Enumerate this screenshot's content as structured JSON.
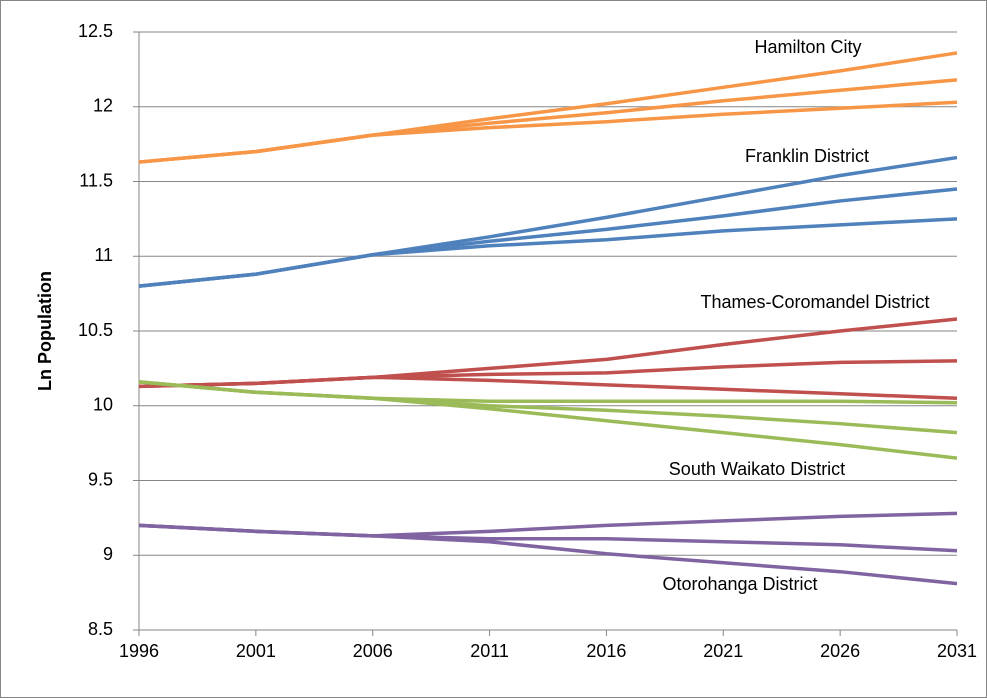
{
  "chart_data": {
    "type": "line",
    "y_label": "Ln Population",
    "x": [
      1996,
      2001,
      2006,
      2011,
      2016,
      2021,
      2026,
      2031
    ],
    "xlim": [
      1996,
      2031
    ],
    "xticks": [
      1996,
      2001,
      2006,
      2011,
      2016,
      2021,
      2026,
      2031
    ],
    "ylim": [
      8.5,
      12.5
    ],
    "yticks": [
      12.5,
      12,
      11.5,
      11,
      10.5,
      10,
      9.5,
      9,
      8.5
    ],
    "grid": true,
    "annotations": [
      "Hamilton City",
      "Franklin District",
      "Thames-Coromandel District",
      "South Waikato District",
      "Otorohanga District"
    ],
    "series": [
      {
        "color": "#f79646",
        "values": [
          11.63,
          11.7,
          11.81,
          11.92,
          12.02,
          12.13,
          12.24,
          12.36
        ]
      },
      {
        "color": "#f79646",
        "values": [
          11.63,
          11.7,
          11.81,
          11.89,
          11.96,
          12.04,
          12.11,
          12.18
        ]
      },
      {
        "color": "#f79646",
        "values": [
          11.63,
          11.7,
          11.81,
          11.86,
          11.9,
          11.95,
          11.99,
          12.03
        ]
      },
      {
        "color": "#4f81bd",
        "values": [
          10.8,
          10.88,
          11.01,
          11.13,
          11.26,
          11.4,
          11.54,
          11.66
        ]
      },
      {
        "color": "#4f81bd",
        "values": [
          10.8,
          10.88,
          11.01,
          11.1,
          11.18,
          11.27,
          11.37,
          11.45
        ]
      },
      {
        "color": "#4f81bd",
        "values": [
          10.8,
          10.88,
          11.01,
          11.07,
          11.11,
          11.17,
          11.21,
          11.25
        ]
      },
      {
        "color": "#c0504d",
        "values": [
          10.13,
          10.15,
          10.19,
          10.25,
          10.31,
          10.41,
          10.5,
          10.58
        ]
      },
      {
        "color": "#c0504d",
        "values": [
          10.13,
          10.15,
          10.19,
          10.21,
          10.22,
          10.26,
          10.29,
          10.3
        ]
      },
      {
        "color": "#c0504d",
        "values": [
          10.13,
          10.15,
          10.19,
          10.17,
          10.14,
          10.11,
          10.08,
          10.05
        ]
      },
      {
        "color": "#9bbb59",
        "values": [
          10.16,
          10.09,
          10.05,
          10.03,
          10.03,
          10.03,
          10.03,
          10.02
        ]
      },
      {
        "color": "#9bbb59",
        "values": [
          10.16,
          10.09,
          10.05,
          10.0,
          9.97,
          9.93,
          9.88,
          9.82
        ]
      },
      {
        "color": "#9bbb59",
        "values": [
          10.16,
          10.09,
          10.05,
          9.98,
          9.9,
          9.82,
          9.74,
          9.65
        ]
      },
      {
        "color": "#8064a2",
        "values": [
          9.2,
          9.16,
          9.13,
          9.16,
          9.2,
          9.23,
          9.26,
          9.28
        ]
      },
      {
        "color": "#8064a2",
        "values": [
          9.2,
          9.16,
          9.13,
          9.11,
          9.11,
          9.09,
          9.07,
          9.03
        ]
      },
      {
        "color": "#8064a2",
        "values": [
          9.2,
          9.16,
          9.13,
          9.09,
          9.01,
          8.95,
          8.89,
          8.81
        ]
      }
    ]
  }
}
